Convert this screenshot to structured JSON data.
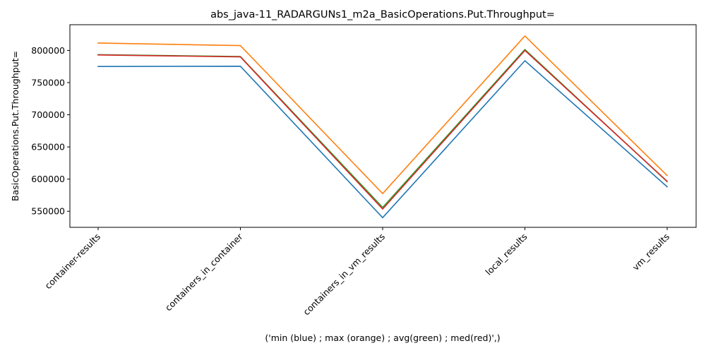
{
  "chart_data": {
    "type": "line",
    "title": "abs_java-11_RADARGUNs1_m2a_BasicOperations.Put.Throughput=",
    "xlabel": "('min (blue) ; max (orange) ; avg(green) ; med(red)',)",
    "ylabel": "BasicOperations.Put.Throughput=",
    "categories": [
      "container-results",
      "containers_in_container",
      "containers_in_vm_results",
      "local_results",
      "vm_results"
    ],
    "ylim": [
      525000,
      840000
    ],
    "yticks": [
      550000,
      600000,
      650000,
      700000,
      750000,
      800000
    ],
    "ytick_labels": [
      "550000",
      "600000",
      "650000",
      "700000",
      "750000",
      "800000"
    ],
    "grid": false,
    "series": [
      {
        "color": "#1f77b4",
        "values": [
          775000,
          775500,
          540000,
          784000,
          588000
        ]
      },
      {
        "color": "#ff7f0e",
        "values": [
          811500,
          807500,
          577500,
          822500,
          605500
        ]
      },
      {
        "color": "#2ca02c",
        "values": [
          793500,
          790500,
          556000,
          801500,
          596000
        ]
      },
      {
        "color": "#d62728",
        "values": [
          793000,
          790000,
          553500,
          800000,
          596500
        ]
      }
    ]
  }
}
